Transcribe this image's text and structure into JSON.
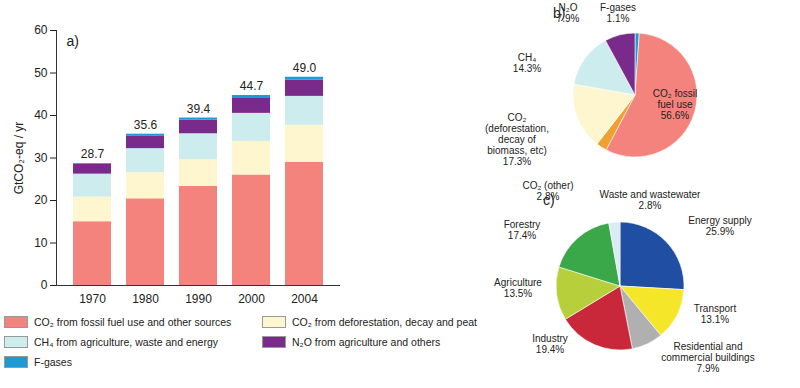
{
  "chart_data": [
    {
      "type": "bar",
      "title": "a)",
      "stacked": true,
      "legend": "bottom",
      "categories": [
        "1970",
        "1980",
        "1990",
        "2000",
        "2004"
      ],
      "y_label": "GtCO₂-eq / yr",
      "ylim": [
        0,
        60
      ],
      "yticks": [
        0,
        10,
        20,
        30,
        40,
        50,
        60
      ],
      "series": [
        {
          "name": "CO₂ from fossil fuel use and other sources",
          "color": "#f4837d",
          "values": [
            15.0,
            20.4,
            23.3,
            26.0,
            29.0
          ]
        },
        {
          "name": "CO₂ from deforestation, decay and peat",
          "color": "#fdf6cf",
          "values": [
            5.8,
            6.2,
            6.3,
            7.9,
            8.7
          ]
        },
        {
          "name": "CH₄ from agriculture, waste and energy",
          "color": "#cdeced",
          "values": [
            5.4,
            5.6,
            6.1,
            6.6,
            6.8
          ]
        },
        {
          "name": "N₂O from agriculture and others",
          "color": "#7a2a8a",
          "values": [
            2.3,
            3.0,
            3.2,
            3.5,
            3.8
          ]
        },
        {
          "name": "F-gases",
          "color": "#1a9ad6",
          "values": [
            0.2,
            0.4,
            0.5,
            0.7,
            0.7
          ]
        }
      ],
      "totals": {
        "values": [
          28.7,
          35.6,
          39.4,
          44.7,
          49.0
        ],
        "value_labels": [
          "28.7",
          "35.6",
          "39.4",
          "44.7",
          "49.0"
        ]
      }
    },
    {
      "type": "pie",
      "title": "b)",
      "data_labels": true,
      "categories": [
        "F-gases",
        "CO₂ fossil fuel use",
        "CO₂ (other)",
        "CO₂ (deforestation, decay of biomass, etc)",
        "CH₄",
        "N₂O"
      ],
      "values": [
        1.1,
        56.6,
        2.8,
        17.3,
        14.3,
        7.9
      ],
      "value_labels": [
        "1.1%",
        "56.6%",
        "2.8%",
        "17.3%",
        "14.3%",
        "7.9%"
      ],
      "colors": [
        "#1a9ad6",
        "#f4837d",
        "#f0a030",
        "#fdf6cf",
        "#cdeced",
        "#7a2a8a"
      ]
    },
    {
      "type": "pie",
      "title": "c)",
      "data_labels": true,
      "categories": [
        "Energy supply",
        "Transport",
        "Residential and commercial buildings",
        "Industry",
        "Agriculture",
        "Forestry",
        "Waste and wastewater"
      ],
      "values": [
        25.9,
        13.1,
        7.9,
        19.4,
        13.5,
        17.4,
        2.8
      ],
      "value_labels": [
        "25.9%",
        "13.1%",
        "7.9%",
        "19.4%",
        "13.5%",
        "17.4%",
        "2.8%"
      ],
      "colors": [
        "#1f4ea3",
        "#f5e62a",
        "#b0b0b0",
        "#c8283a",
        "#b7cf3a",
        "#3aa849",
        "#d9ecf2"
      ]
    }
  ]
}
